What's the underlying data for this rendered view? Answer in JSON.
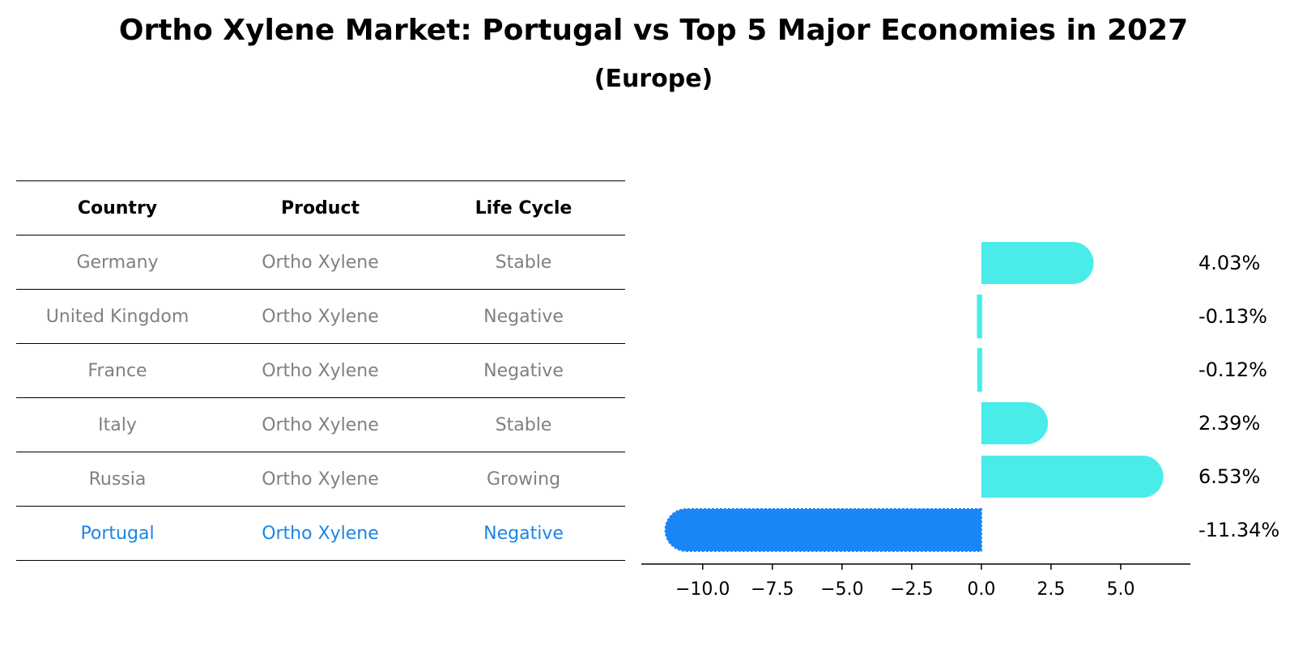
{
  "title": "Ortho Xylene Market: Portugal vs Top 5 Major Economies in 2027",
  "subtitle": "(Europe)",
  "colors": {
    "others_text": "#808080",
    "highlight_text": "#1a85e6",
    "others_bar": "#4aecea",
    "highlight_bar": "#1a85f6"
  },
  "table": {
    "headers": [
      "Country",
      "Product",
      "Life Cycle"
    ],
    "rows": [
      {
        "country": "Germany",
        "product": "Ortho Xylene",
        "life_cycle": "Stable",
        "highlight": false
      },
      {
        "country": "United Kingdom",
        "product": "Ortho Xylene",
        "life_cycle": "Negative",
        "highlight": false
      },
      {
        "country": "France",
        "product": "Ortho Xylene",
        "life_cycle": "Negative",
        "highlight": false
      },
      {
        "country": "Italy",
        "product": "Ortho Xylene",
        "life_cycle": "Stable",
        "highlight": false
      },
      {
        "country": "Russia",
        "product": "Ortho Xylene",
        "life_cycle": "Growing",
        "highlight": false
      },
      {
        "country": "Portugal",
        "product": "Ortho Xylene",
        "life_cycle": "Negative",
        "highlight": true
      }
    ]
  },
  "chart_data": {
    "type": "bar",
    "orientation": "horizontal",
    "title": "Ortho Xylene Market: Portugal vs Top 5 Major Economies in 2027",
    "subtitle": "(Europe)",
    "categories": [
      "Germany",
      "United Kingdom",
      "France",
      "Italy",
      "Russia",
      "Portugal"
    ],
    "values": [
      4.03,
      -0.13,
      -0.12,
      2.39,
      6.53,
      -11.34
    ],
    "value_labels": [
      "4.03%",
      "-0.13%",
      "-0.12%",
      "2.39%",
      "6.53%",
      "-11.34%"
    ],
    "highlight": [
      false,
      false,
      false,
      false,
      false,
      true
    ],
    "xlim": [
      -12.2,
      7.5
    ],
    "xticks": [
      -10.0,
      -7.5,
      -5.0,
      -2.5,
      0.0,
      2.5,
      5.0
    ],
    "xtick_labels": [
      "−10.0",
      "−7.5",
      "−5.0",
      "−2.5",
      "0.0",
      "2.5",
      "5.0"
    ],
    "xlabel": "",
    "ylabel": "",
    "grid": false,
    "legend": "none"
  }
}
